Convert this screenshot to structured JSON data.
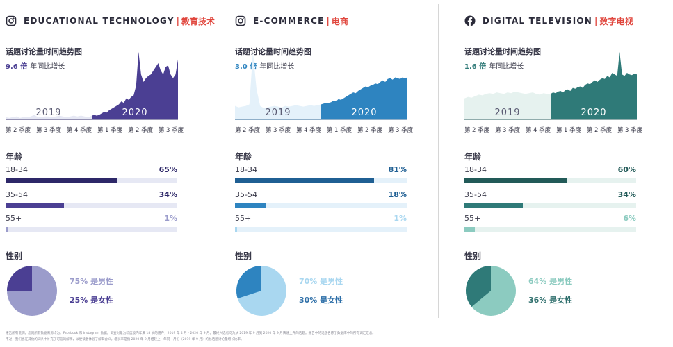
{
  "panels": [
    {
      "id": "edtech",
      "icon": "instagram-icon",
      "title_en": "EDUCATIONAL TECHNOLOGY",
      "separator": "|",
      "title_zh": "教育技术",
      "trend_title": "话题讨论量时间趋势图",
      "growth_value": "9.6 倍",
      "growth_label": "年同比增长",
      "colors": {
        "accent": "#4b3f93",
        "dark": "#2d2768",
        "light": "#e6e8f4",
        "pie_male": "#9b9ccb",
        "pie_female": "#4b3f93",
        "male_text": "#9b9ccb",
        "female_text": "#4b3f93",
        "age_light_text": "#9b9ccb"
      },
      "age_title": "年龄",
      "ages": [
        {
          "label": "18-34",
          "pct_text": "65%",
          "value": 65
        },
        {
          "label": "35-54",
          "pct_text": "34%",
          "value": 34
        },
        {
          "label": "55+",
          "pct_text": "1%",
          "value": 1
        }
      ],
      "gender_title": "性别",
      "male_text": "75% 是男性",
      "female_text": "25% 是女性",
      "male_value": 75,
      "female_value": 25
    },
    {
      "id": "ecommerce",
      "icon": "instagram-icon",
      "title_en": "E-COMMERCE",
      "separator": "|",
      "title_zh": "电商",
      "trend_title": "话题讨论量时间趋势图",
      "growth_value": "3.0 倍",
      "growth_label": "年同比增长",
      "colors": {
        "accent": "#2e84c0",
        "dark": "#1f5f93",
        "light": "#e4f1fa",
        "pie_male": "#a9d7f0",
        "pie_female": "#2e84c0",
        "male_text": "#a9d7f0",
        "female_text": "#2e6fa8",
        "age_light_text": "#a9d7f0"
      },
      "age_title": "年龄",
      "ages": [
        {
          "label": "18-34",
          "pct_text": "81%",
          "value": 81
        },
        {
          "label": "35-54",
          "pct_text": "18%",
          "value": 18
        },
        {
          "label": "55+",
          "pct_text": "1%",
          "value": 1
        }
      ],
      "gender_title": "性别",
      "male_text": "70% 是男性",
      "female_text": "30% 是女性",
      "male_value": 70,
      "female_value": 30
    },
    {
      "id": "digitaltv",
      "icon": "facebook-icon",
      "title_en": "DIGITAL TELEVISION",
      "separator": "|",
      "title_zh": "数字电视",
      "trend_title": "话题讨论量时间趋势图",
      "growth_value": "1.6 倍",
      "growth_label": "年同比增长",
      "colors": {
        "accent": "#2f7a78",
        "dark": "#225a58",
        "light": "#e6f2ef",
        "pie_male": "#8ccbc0",
        "pie_female": "#2f7a78",
        "male_text": "#8ccbc0",
        "female_text": "#2f6f6d",
        "age_light_text": "#8ccbc0"
      },
      "age_title": "年龄",
      "ages": [
        {
          "label": "18-34",
          "pct_text": "60%",
          "value": 60
        },
        {
          "label": "35-54",
          "pct_text": "34%",
          "value": 34
        },
        {
          "label": "55+",
          "pct_text": "6%",
          "value": 6
        }
      ],
      "gender_title": "性别",
      "male_text": "64% 是男性",
      "female_text": "36% 是女性",
      "male_value": 64,
      "female_value": 36
    }
  ],
  "chart_data": [
    {
      "type": "area",
      "title": "话题讨论量时间趋势图",
      "panel": "EDUCATIONAL TECHNOLOGY | 教育技术",
      "x_tick_labels": [
        "第 2 季度",
        "第 3 季度",
        "第 4 季度",
        "第 1 季度",
        "第 2 季度",
        "第 3 季度"
      ],
      "series_labels": [
        "2019",
        "2020"
      ],
      "ylim": [
        0,
        100
      ],
      "series": [
        {
          "name": "2019",
          "values": [
            3,
            2,
            3,
            4,
            2,
            3,
            3,
            4,
            6,
            3,
            3,
            4,
            4,
            3,
            4,
            5,
            4,
            3,
            4,
            5,
            4,
            5,
            4,
            3,
            5
          ]
        },
        {
          "name": "2020",
          "values": [
            5,
            6,
            5,
            6,
            8,
            10,
            9,
            12,
            14,
            16,
            18,
            20,
            24,
            22,
            28,
            26,
            30,
            32,
            45,
            90,
            60,
            50,
            55,
            58,
            60,
            65,
            70,
            75,
            65,
            60,
            70,
            72,
            60,
            55,
            60,
            80
          ]
        }
      ]
    },
    {
      "type": "area",
      "title": "话题讨论量时间趋势图",
      "panel": "E-COMMERCE | 电商",
      "x_tick_labels": [
        "第 2 季度",
        "第 3 季度",
        "第 4 季度",
        "第 1 季度",
        "第 2 季度",
        "第 3 季度"
      ],
      "series_labels": [
        "2019",
        "2020"
      ],
      "ylim": [
        0,
        100
      ],
      "series": [
        {
          "name": "2019",
          "values": [
            18,
            16,
            17,
            18,
            20,
            90,
            40,
            18,
            15,
            16,
            17,
            18,
            17,
            16,
            18,
            17,
            18,
            19,
            18,
            17,
            18,
            19,
            18,
            19,
            20
          ]
        },
        {
          "name": "2020",
          "values": [
            20,
            21,
            22,
            22,
            23,
            25,
            24,
            27,
            26,
            28,
            30,
            32,
            34,
            36,
            35,
            38,
            40,
            42,
            44,
            43,
            45,
            46,
            48,
            47,
            50,
            52,
            50,
            54,
            55,
            53,
            56,
            55,
            54,
            56,
            55,
            56
          ]
        }
      ]
    },
    {
      "type": "area",
      "title": "话题讨论量时间趋势图",
      "panel": "DIGITAL TELEVISION | 数字电视",
      "x_tick_labels": [
        "第 2 季度",
        "第 3 季度",
        "第 4 季度",
        "第 1 季度",
        "第 2 季度",
        "第 3 季度"
      ],
      "series_labels": [
        "2019",
        "2020"
      ],
      "ylim": [
        0,
        100
      ],
      "series": [
        {
          "name": "2019",
          "values": [
            28,
            30,
            29,
            31,
            33,
            32,
            34,
            35,
            34,
            36,
            35,
            34,
            36,
            35,
            37,
            36,
            35,
            34,
            35,
            36,
            34,
            33,
            35,
            34,
            33
          ]
        },
        {
          "name": "2020",
          "values": [
            34,
            36,
            35,
            37,
            38,
            36,
            39,
            40,
            38,
            42,
            41,
            43,
            44,
            42,
            46,
            48,
            47,
            50,
            52,
            50,
            53,
            55,
            54,
            58,
            56,
            62,
            60,
            58,
            90,
            60,
            58,
            62,
            60,
            59,
            61,
            60
          ]
        }
      ]
    },
    {
      "type": "bar",
      "title": "年龄",
      "categories": [
        "18-34",
        "35-54",
        "55+"
      ],
      "series": [
        {
          "name": "EDUCATIONAL TECHNOLOGY",
          "values": [
            65,
            34,
            1
          ]
        },
        {
          "name": "E-COMMERCE",
          "values": [
            81,
            18,
            1
          ]
        },
        {
          "name": "DIGITAL TELEVISION",
          "values": [
            60,
            34,
            6
          ]
        }
      ],
      "ylim": [
        0,
        100
      ]
    },
    {
      "type": "pie",
      "title": "性别",
      "categories": [
        "男性",
        "女性"
      ],
      "series": [
        {
          "name": "EDUCATIONAL TECHNOLOGY",
          "values": [
            75,
            25
          ]
        },
        {
          "name": "E-COMMERCE",
          "values": [
            70,
            30
          ]
        },
        {
          "name": "DIGITAL TELEVISION",
          "values": [
            64,
            36
          ]
        }
      ]
    }
  ],
  "footnote": {
    "line1": "报告所有说明，您则所有数据来源均为：Facebook 和 Instagram 数据，调查对象为印度境内年满 18 岁的用户，2019 年 4 月 - 2020 年 9 月。最终入选者均为从 2019 年 9 月到 2020 年 9 月快速上升的话题。报告中的话题名称了数据库中的所有词汇汇总。",
    "line2": "不过，我们也在其他的词条中补充了可信的解释，以便读者体验了解其含义。增长率是指 2020 年 9 月相较上一年同一月份（2019 年 9 月）的总话题讨论量增长比率。"
  }
}
